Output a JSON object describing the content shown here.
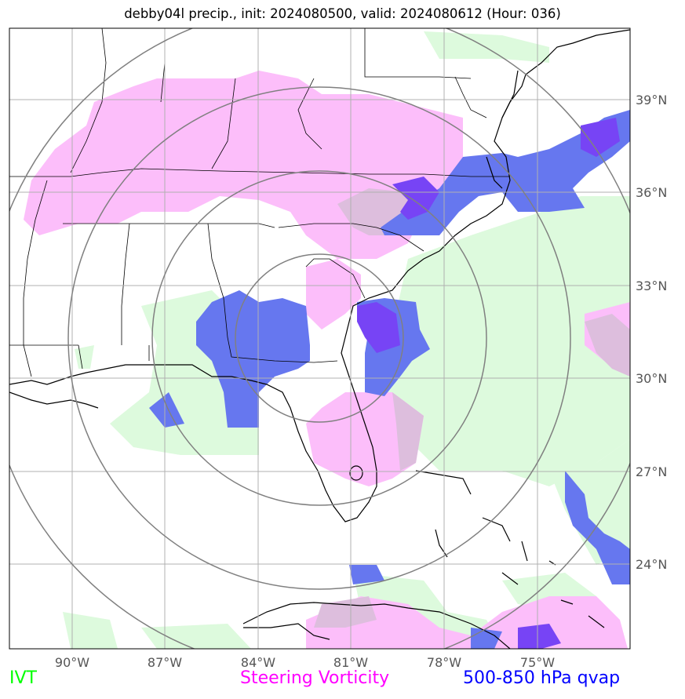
{
  "title": "debby04l precip., init: 2024080500, valid: 2024080612 (Hour: 036)",
  "map": {
    "lon_ticks": [
      "90°W",
      "87°W",
      "84°W",
      "81°W",
      "78°W",
      "75°W"
    ],
    "lat_ticks": [
      "39°N",
      "36°N",
      "33°N",
      "30°N",
      "27°N",
      "24°N"
    ],
    "range_rings": 4,
    "colors": {
      "ivt": "#ddfadd",
      "vorticity": "#fcbefa",
      "qvap": "#6677ef",
      "qvap_strong": "#7744f5",
      "overlap": "#ddbedd",
      "ring": "#808080",
      "grid": "#b0b0b0"
    }
  },
  "legend": {
    "ivt": {
      "label": "IVT",
      "color": "#00ff00"
    },
    "vorticity": {
      "label": "Steering Vorticity",
      "color": "#ff00ff"
    },
    "qvap": {
      "label": "500-850 hPa qvap",
      "color": "#0000ff"
    }
  }
}
